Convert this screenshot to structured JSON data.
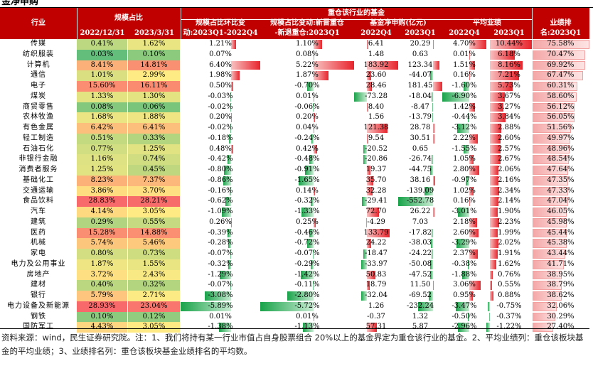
{
  "title": "金净申购",
  "headers": {
    "industry": "行业",
    "scale_share": "规模占比",
    "heavy_funds": "重仓该行业的基金",
    "qoq_change": [
      "规模占比环比变",
      "动:2023Q1-2022Q4"
    ],
    "new_minus_exit": [
      "规模占比变动:新晋重仓",
      "-新退重仓:2023Q1"
    ],
    "net_subscription": "基金净申购(亿元)",
    "avg_performance": "平均业绩",
    "rank": [
      "业绩排",
      "名:2023Q1"
    ],
    "date_2022": "2022/12/31",
    "date_2023": "2023/3/31",
    "q4": "2022Q4",
    "q1": "2023Q1"
  },
  "rows": [
    {
      "name": "传媒",
      "s22": "0.41%",
      "s23": "1.62%",
      "chg": "1.21%",
      "nx": "1.10%",
      "sub22": "6.41",
      "sub23": "20.29",
      "p22": "4.70%",
      "p23": "10.44%",
      "rank": "75.58%"
    },
    {
      "name": "纺织服装",
      "s22": "0.03%",
      "s23": "0.10%",
      "chg": "0.07%",
      "nx": "0.08%",
      "sub22": "1.48",
      "sub23": "0.63",
      "p22": "0.01%",
      "p23": "6.18%",
      "rank": "70.47%"
    },
    {
      "name": "计算机",
      "s22": "8.41%",
      "s23": "14.81%",
      "chg": "6.40%",
      "nx": "5.22%",
      "sub22": "183.92",
      "sub23": "123.34",
      "p22": "1.51%",
      "p23": "8.16%",
      "rank": "69.92%"
    },
    {
      "name": "通信",
      "s22": "1.01%",
      "s23": "2.99%",
      "chg": "1.98%",
      "nx": "1.87%",
      "sub22": "23.60",
      "sub23": "-44.07",
      "p22": "0.16%",
      "p23": "7.21%",
      "rank": "67.47%"
    },
    {
      "name": "电子",
      "s22": "15.60%",
      "s23": "16.11%",
      "chg": "0.50%",
      "nx": "-0.70%",
      "sub22": "28.46",
      "sub23": "181.45",
      "p22": "-1.60%",
      "p23": "5.73%",
      "rank": "60.31%"
    },
    {
      "name": "煤炭",
      "s22": "1.33%",
      "s23": "1.30%",
      "chg": "-0.03%",
      "nx": "0.01%",
      "sub22": "-73.28",
      "sub23": "-18.04",
      "p22": "-6.90%",
      "p23": "3.67%",
      "rank": "58.60%"
    },
    {
      "name": "商贸零售",
      "s22": "0.08%",
      "s23": "0.06%",
      "chg": "-0.02%",
      "nx": "-0.06%",
      "sub22": "8.40",
      "sub23": "-8.47",
      "p22": "1.42%",
      "p23": "3.27%",
      "rank": "56.12%"
    },
    {
      "name": "农林牧渔",
      "s22": "1.68%",
      "s23": "1.88%",
      "chg": "0.20%",
      "nx": "0.20%",
      "sub22": "1.56",
      "sub23": "-13.79",
      "p22": "-0.44%",
      "p23": "3.84%",
      "rank": "56.05%"
    },
    {
      "name": "有色金属",
      "s22": "6.42%",
      "s23": "6.41%",
      "chg": "-0.02%",
      "nx": "0.04%",
      "sub22": "121.38",
      "sub23": "28.78",
      "p22": "-3.12%",
      "p23": "2.88%",
      "rank": "51.56%"
    },
    {
      "name": "轻工制造",
      "s22": "0.51%",
      "s23": "0.33%",
      "chg": "-0.18%",
      "nx": "-0.24%",
      "sub22": "9.54",
      "sub23": "30.51",
      "p22": "2.22%",
      "p23": "2.60%",
      "rank": "49.97%"
    },
    {
      "name": "石油石化",
      "s22": "0.77%",
      "s23": "1.25%",
      "chg": "0.48%",
      "nx": "0.42%",
      "sub22": "-20.52",
      "sub23": "0.65",
      "p22": "-1.55%",
      "p23": "2.57%",
      "rank": "48.96%"
    },
    {
      "name": "非银行金融",
      "s22": "1.16%",
      "s23": "0.74%",
      "chg": "-0.42%",
      "nx": "-0.48%",
      "sub22": "-20.86",
      "sub23": "-26.74",
      "p22": "1.05%",
      "p23": "2.67%",
      "rank": "48.54%"
    },
    {
      "name": "消费者服务",
      "s22": "1.25%",
      "s23": "0.45%",
      "chg": "-0.80%",
      "nx": "-0.91%",
      "sub22": "19.37",
      "sub23": "-44.75",
      "p22": "2.80%",
      "p23": "2.06%",
      "rank": "47.64%"
    },
    {
      "name": "基础化工",
      "s22": "8.23%",
      "s23": "7.37%",
      "chg": "-0.86%",
      "nx": "-1.65%",
      "sub22": "35.70",
      "sub23": "38.16",
      "p22": "-0.97%",
      "p23": "2.16%",
      "rank": "47.35%"
    },
    {
      "name": "交通运输",
      "s22": "3.86%",
      "s23": "3.70%",
      "chg": "-0.16%",
      "nx": "0.14%",
      "sub22": "32.28",
      "sub23": "-139.09",
      "p22": "1.02%",
      "p23": "2.34%",
      "rank": "47.33%"
    },
    {
      "name": "食品饮料",
      "s22": "28.83%",
      "s23": "28.21%",
      "chg": "-0.62%",
      "nx": "-0.32%",
      "sub22": "-29.41",
      "sub23": "-552.78",
      "p22": "0.16%",
      "p23": "2.14%",
      "rank": "47.04%"
    },
    {
      "name": "汽车",
      "s22": "4.14%",
      "s23": "3.05%",
      "chg": "-1.09%",
      "nx": "-1.33%",
      "sub22": "72.70",
      "sub23": "26.22",
      "p22": "-3.01%",
      "p23": "1.90%",
      "rank": "46.05%"
    },
    {
      "name": "建筑",
      "s22": "0.29%",
      "s23": "0.55%",
      "chg": "0.26%",
      "nx": "0.25%",
      "sub22": "-4.29",
      "sub23": "7.03",
      "p22": "2.18%",
      "p23": "2.23%",
      "rank": "45.98%"
    },
    {
      "name": "医药",
      "s22": "15.28%",
      "s23": "14.88%",
      "chg": "-0.39%",
      "nx": "-0.46%",
      "sub22": "133.79",
      "sub23": "-17.82",
      "p22": "2.60%",
      "p23": "1.99%",
      "rank": "45.44%"
    },
    {
      "name": "机械",
      "s22": "5.74%",
      "s23": "5.46%",
      "chg": "-0.28%",
      "nx": "-0.72%",
      "sub22": "24.22",
      "sub23": "-38.03",
      "p22": "-3.29%",
      "p23": "2.02%",
      "rank": "45.38%"
    },
    {
      "name": "家电",
      "s22": "0.80%",
      "s23": "0.73%",
      "chg": "-0.07%",
      "nx": "-0.07%",
      "sub22": "-18.47",
      "sub23": "-24.22",
      "p22": "2.37%",
      "p23": "1.91%",
      "rank": "43.44%"
    },
    {
      "name": "电力及公用事业",
      "s22": "1.87%",
      "s23": "1.55%",
      "chg": "-0.32%",
      "nx": "-0.29%",
      "sub22": "-33.97",
      "sub23": "-50.08",
      "p22": "-0.38%",
      "p23": "1.62%",
      "rank": "41.71%"
    },
    {
      "name": "房地产",
      "s22": "3.72%",
      "s23": "2.43%",
      "chg": "-1.29%",
      "nx": "-1.42%",
      "sub22": "50.83",
      "sub23": "-47.52",
      "p22": "-1.88%",
      "p23": "0.76%",
      "rank": "38.95%"
    },
    {
      "name": "建材",
      "s22": "0.40%",
      "s23": "0.32%",
      "chg": "-0.07%",
      "nx": "-0.11%",
      "sub22": "18.79",
      "sub23": "11.50",
      "p22": "3.06%",
      "p23": "0.55%",
      "rank": "38.79%"
    },
    {
      "name": "银行",
      "s22": "5.79%",
      "s23": "2.71%",
      "chg": "-3.08%",
      "nx": "-2.80%",
      "sub22": "-32.04",
      "sub23": "-69.52",
      "p22": "0.95%",
      "p23": "0.88%",
      "rank": "38.62%"
    },
    {
      "name": "电力设备及新能源",
      "s22": "28.93%",
      "s23": "23.04%",
      "chg": "-5.89%",
      "nx": "-5.72%",
      "sub22": "1.26",
      "sub23": "-232.24",
      "p22": "-3.47%",
      "p23": "-0.75%",
      "rank": "32.06%"
    },
    {
      "name": "钢铁",
      "s22": "0.10%",
      "s23": "0.12%",
      "chg": "0.01%",
      "nx": "0.01%",
      "sub22": "-0.37",
      "sub23": "1.32",
      "p22": "-0.50%",
      "p23": "-0.37%",
      "rank": "30.29%"
    },
    {
      "name": "国防军工",
      "s22": "4.43%",
      "s23": "3.05%",
      "chg": "-1.38%",
      "nx": "-1.13%",
      "sub22": "57.31",
      "sub23": "5.87",
      "p22": "-2.96%",
      "p23": "-1.22%",
      "rank": "27.40%"
    }
  ],
  "footnote": "资料来源：wind，民生证券研究院。注：1、我们将持有某一行业市值占自身股票组合 20%以上的基金界定为重仓该行业的基金。2、平均业绩列：重仓该板块基金的平均业绩；3、业绩排名列：重仓该板块基金业绩排名的平均数。"
}
